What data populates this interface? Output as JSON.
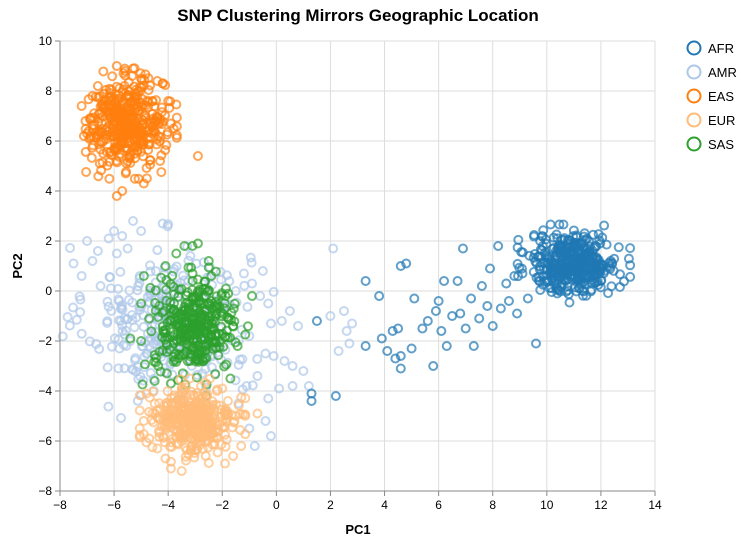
{
  "chart_data": {
    "type": "scatter",
    "title": "SNP Clustering Mirrors Geographic Location",
    "xlabel": "PC1",
    "ylabel": "PC2",
    "xlim": [
      -8,
      14
    ],
    "ylim": [
      -8,
      10
    ],
    "x_ticks": [
      -8,
      -6,
      -4,
      -2,
      0,
      2,
      4,
      6,
      8,
      10,
      12,
      14
    ],
    "y_ticks": [
      -8,
      -6,
      -4,
      -2,
      0,
      2,
      4,
      6,
      8,
      10
    ],
    "grid": true,
    "legend_position": "right",
    "series": [
      {
        "name": "AFR",
        "color": "#1f77b4",
        "cluster": {
          "x_center": 11.0,
          "y_center": 1.1,
          "x_sd": 0.8,
          "y_sd": 0.6,
          "count": 420
        },
        "points": [
          {
            "x": 1.3,
            "y": -4.1
          },
          {
            "x": 1.3,
            "y": -4.4
          },
          {
            "x": 2.2,
            "y": -4.2
          },
          {
            "x": 1.5,
            "y": -1.2
          },
          {
            "x": 3.3,
            "y": 0.4
          },
          {
            "x": 3.8,
            "y": -0.2
          },
          {
            "x": 3.3,
            "y": -2.2
          },
          {
            "x": 3.9,
            "y": -1.9
          },
          {
            "x": 4.1,
            "y": -2.4
          },
          {
            "x": 4.3,
            "y": -1.6
          },
          {
            "x": 4.5,
            "y": -1.5
          },
          {
            "x": 4.4,
            "y": -2.7
          },
          {
            "x": 4.6,
            "y": -2.6
          },
          {
            "x": 4.6,
            "y": 1.0
          },
          {
            "x": 4.8,
            "y": 1.1
          },
          {
            "x": 5.1,
            "y": -0.3
          },
          {
            "x": 5.0,
            "y": -2.3
          },
          {
            "x": 4.6,
            "y": -3.1
          },
          {
            "x": 5.4,
            "y": -1.5
          },
          {
            "x": 5.6,
            "y": -1.2
          },
          {
            "x": 5.9,
            "y": -0.8
          },
          {
            "x": 5.8,
            "y": -3.0
          },
          {
            "x": 6.0,
            "y": -0.4
          },
          {
            "x": 6.1,
            "y": -1.6
          },
          {
            "x": 6.2,
            "y": 0.4
          },
          {
            "x": 6.3,
            "y": -2.2
          },
          {
            "x": 6.5,
            "y": -1.0
          },
          {
            "x": 6.7,
            "y": 0.4
          },
          {
            "x": 6.8,
            "y": -0.9
          },
          {
            "x": 6.9,
            "y": 1.7
          },
          {
            "x": 7.0,
            "y": -1.5
          },
          {
            "x": 7.2,
            "y": -0.3
          },
          {
            "x": 7.3,
            "y": -2.2
          },
          {
            "x": 7.5,
            "y": -1.1
          },
          {
            "x": 7.6,
            "y": 0.2
          },
          {
            "x": 7.8,
            "y": -0.6
          },
          {
            "x": 7.9,
            "y": 0.9
          },
          {
            "x": 8.0,
            "y": -1.4
          },
          {
            "x": 8.2,
            "y": 1.8
          },
          {
            "x": 8.3,
            "y": -0.7
          },
          {
            "x": 8.5,
            "y": 0.3
          },
          {
            "x": 8.6,
            "y": -0.4
          },
          {
            "x": 8.8,
            "y": 0.6
          },
          {
            "x": 8.9,
            "y": -0.9
          },
          {
            "x": 9.3,
            "y": -0.3
          },
          {
            "x": 9.6,
            "y": -2.1
          },
          {
            "x": 9.1,
            "y": 0.7
          }
        ]
      },
      {
        "name": "AMR",
        "color": "#aec7e8",
        "cluster": {
          "x_center": -4.0,
          "y_center": -1.2,
          "x_sd": 1.5,
          "y_sd": 1.5,
          "count": 280
        },
        "points": [
          {
            "x": -7.5,
            "y": 1.1
          },
          {
            "x": -7.2,
            "y": 0.6
          },
          {
            "x": -7.0,
            "y": 2.0
          },
          {
            "x": -6.8,
            "y": 1.2
          },
          {
            "x": -6.5,
            "y": 0.2
          },
          {
            "x": -6.6,
            "y": 1.6
          },
          {
            "x": -6.2,
            "y": 2.1
          },
          {
            "x": -6.0,
            "y": 2.4
          },
          {
            "x": -5.9,
            "y": 1.5
          },
          {
            "x": -5.7,
            "y": 2.2
          },
          {
            "x": -5.5,
            "y": 1.7
          },
          {
            "x": -5.3,
            "y": 2.8
          },
          {
            "x": -5.0,
            "y": 2.4
          },
          {
            "x": -6.1,
            "y": -0.8
          },
          {
            "x": -5.8,
            "y": -2.3
          },
          {
            "x": -5.4,
            "y": -2.0
          },
          {
            "x": -1.5,
            "y": 0.0
          },
          {
            "x": -1.2,
            "y": 0.7
          },
          {
            "x": -0.5,
            "y": 0.8
          },
          {
            "x": -0.9,
            "y": 0.3
          },
          {
            "x": -0.6,
            "y": -0.2
          },
          {
            "x": -0.3,
            "y": -0.5
          },
          {
            "x": -0.2,
            "y": -1.3
          },
          {
            "x": 0.2,
            "y": -1.2
          },
          {
            "x": 0.5,
            "y": -0.8
          },
          {
            "x": 0.8,
            "y": -1.4
          },
          {
            "x": -1.0,
            "y": -1.8
          },
          {
            "x": -0.4,
            "y": -2.5
          },
          {
            "x": -0.1,
            "y": -2.6
          },
          {
            "x": 0.3,
            "y": -2.8
          },
          {
            "x": 0.6,
            "y": -3.0
          },
          {
            "x": 1.0,
            "y": -3.2
          },
          {
            "x": -0.7,
            "y": -3.4
          },
          {
            "x": -1.1,
            "y": -3.8
          },
          {
            "x": 0.1,
            "y": -3.9
          },
          {
            "x": 0.6,
            "y": -3.8
          },
          {
            "x": 1.2,
            "y": -3.8
          },
          {
            "x": -0.3,
            "y": -4.3
          },
          {
            "x": -1.4,
            "y": -4.5
          },
          {
            "x": -1.0,
            "y": -5.5
          },
          {
            "x": -0.4,
            "y": -5.2
          },
          {
            "x": -0.2,
            "y": -5.8
          },
          {
            "x": -0.8,
            "y": -6.2
          },
          {
            "x": 2.1,
            "y": 1.7
          },
          {
            "x": 2.0,
            "y": -1.0
          },
          {
            "x": 2.5,
            "y": -0.8
          },
          {
            "x": 2.6,
            "y": -1.6
          },
          {
            "x": 2.3,
            "y": -2.4
          },
          {
            "x": 2.8,
            "y": -1.3
          },
          {
            "x": 2.7,
            "y": -2.1
          }
        ]
      },
      {
        "name": "EAS",
        "color": "#ff7f0e",
        "cluster": {
          "x_center": -5.5,
          "y_center": 6.7,
          "x_sd": 0.7,
          "y_sd": 0.85,
          "count": 420
        },
        "points": [
          {
            "x": -7.2,
            "y": 7.4
          },
          {
            "x": -7.0,
            "y": 6.3
          },
          {
            "x": -6.8,
            "y": 7.8
          },
          {
            "x": -6.6,
            "y": 8.2
          },
          {
            "x": -5.9,
            "y": 9.0
          },
          {
            "x": -5.6,
            "y": 8.8
          },
          {
            "x": -5.3,
            "y": 8.9
          },
          {
            "x": -5.0,
            "y": 8.5
          },
          {
            "x": -4.4,
            "y": 8.4
          },
          {
            "x": -4.2,
            "y": 8.3
          },
          {
            "x": -3.8,
            "y": 6.5
          },
          {
            "x": -3.9,
            "y": 6.7
          },
          {
            "x": -4.3,
            "y": 5.2
          },
          {
            "x": -2.9,
            "y": 5.4
          },
          {
            "x": -5.7,
            "y": 4.0
          },
          {
            "x": -5.9,
            "y": 3.8
          },
          {
            "x": -6.4,
            "y": 5.5
          },
          {
            "x": -4.9,
            "y": 4.3
          },
          {
            "x": -6.9,
            "y": 6.9
          },
          {
            "x": -4.0,
            "y": 7.6
          }
        ]
      },
      {
        "name": "EUR",
        "color": "#ffbb78",
        "cluster": {
          "x_center": -3.1,
          "y_center": -5.2,
          "x_sd": 0.75,
          "y_sd": 0.65,
          "count": 400
        },
        "points": [
          {
            "x": -4.9,
            "y": -5.2
          },
          {
            "x": -4.7,
            "y": -5.9
          },
          {
            "x": -4.5,
            "y": -4.5
          },
          {
            "x": -4.4,
            "y": -6.3
          },
          {
            "x": -4.1,
            "y": -6.7
          },
          {
            "x": -3.9,
            "y": -7.1
          },
          {
            "x": -3.5,
            "y": -7.2
          },
          {
            "x": -1.6,
            "y": -6.6
          },
          {
            "x": -1.3,
            "y": -6.2
          },
          {
            "x": -1.5,
            "y": -5.0
          },
          {
            "x": -0.7,
            "y": -4.9
          },
          {
            "x": -2.0,
            "y": -3.9
          },
          {
            "x": -3.2,
            "y": -3.5
          },
          {
            "x": -4.8,
            "y": -4.1
          },
          {
            "x": -1.9,
            "y": -6.9
          }
        ]
      },
      {
        "name": "SAS",
        "color": "#2ca02c",
        "cluster": {
          "x_center": -3.0,
          "y_center": -1.4,
          "x_sd": 0.75,
          "y_sd": 0.9,
          "count": 350
        },
        "points": [
          {
            "x": -3.4,
            "y": 1.8
          },
          {
            "x": -3.1,
            "y": 1.8
          },
          {
            "x": -2.9,
            "y": 1.9
          },
          {
            "x": -3.7,
            "y": 1.5
          },
          {
            "x": -4.1,
            "y": 1.0
          },
          {
            "x": -2.5,
            "y": 1.2
          },
          {
            "x": -2.4,
            "y": 0.6
          },
          {
            "x": -4.9,
            "y": 0.6
          },
          {
            "x": -5.0,
            "y": -0.5
          },
          {
            "x": -4.7,
            "y": -1.1
          },
          {
            "x": -5.0,
            "y": -2.0
          },
          {
            "x": -5.4,
            "y": -1.9
          },
          {
            "x": -0.9,
            "y": -0.2
          },
          {
            "x": -1.6,
            "y": -1.4
          },
          {
            "x": -1.7,
            "y": -3.5
          },
          {
            "x": -4.5,
            "y": -3.6
          },
          {
            "x": -2.9,
            "y": -4.7
          },
          {
            "x": -2.6,
            "y": -4.2
          },
          {
            "x": -3.9,
            "y": -3.7
          }
        ]
      }
    ]
  }
}
